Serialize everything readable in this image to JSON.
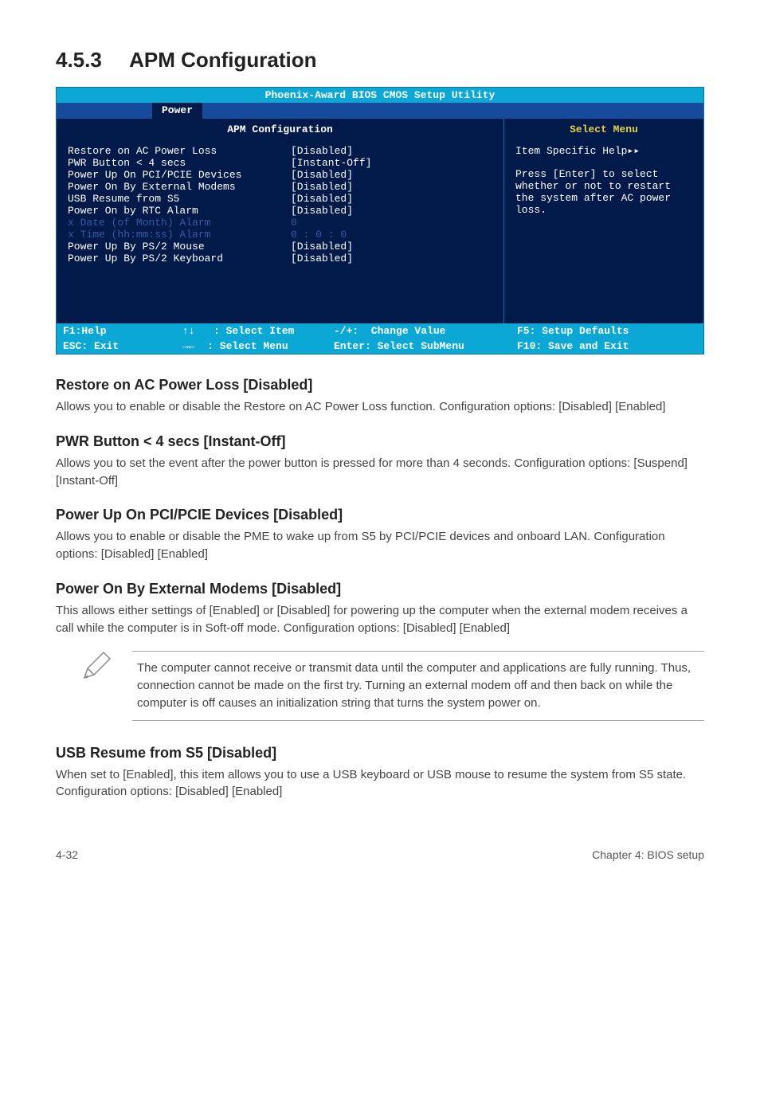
{
  "section": {
    "number": "4.5.3",
    "title": "APM Configuration"
  },
  "bios": {
    "titlebar": "Phoenix-Award BIOS CMOS Setup Utility",
    "active_tab": "Power",
    "pane_header_left": "APM Configuration",
    "pane_header_right": "Select Menu",
    "settings": [
      {
        "label": "Restore on AC Power Loss",
        "value": "[Disabled]",
        "dim": false
      },
      {
        "label": "PWR Button < 4 secs",
        "value": "[Instant-Off]",
        "dim": false
      },
      {
        "label": "Power Up On PCI/PCIE Devices",
        "value": "[Disabled]",
        "dim": false
      },
      {
        "label": "Power On By External Modems",
        "value": "[Disabled]",
        "dim": false
      },
      {
        "label": "USB Resume from S5",
        "value": "[Disabled]",
        "dim": false
      },
      {
        "label": "Power On by RTC Alarm",
        "value": "[Disabled]",
        "dim": false
      },
      {
        "label": "x  Date (of Month) Alarm",
        "value": " 0",
        "dim": true
      },
      {
        "label": "x  Time (hh:mm:ss) Alarm",
        "value": " 0 : 0 : 0",
        "dim": true
      },
      {
        "label": "Power Up By PS/2 Mouse",
        "value": "[Disabled]",
        "dim": false
      },
      {
        "label": "Power Up By PS/2 Keyboard",
        "value": "[Disabled]",
        "dim": false
      }
    ],
    "help": {
      "title": "Item Specific Help▸▸",
      "body": "Press [Enter] to select whether or not to restart the system after AC power loss."
    },
    "footer": {
      "l1a": "F1:Help",
      "l1b": "↑↓   : Select Item",
      "l1c": "-/+:  Change Value",
      "l1d": "F5: Setup Defaults",
      "l2a": "ESC: Exit",
      "l2b": "→←  : Select Menu",
      "l2c": "Enter: Select SubMenu",
      "l2d": "F10: Save and Exit"
    }
  },
  "subs": {
    "restore": {
      "h": "Restore on AC Power Loss [Disabled]",
      "p": "Allows you to enable or disable the Restore on AC Power Loss function. Configuration options: [Disabled] [Enabled]"
    },
    "pwr": {
      "h": "PWR Button < 4 secs [Instant-Off]",
      "p": "Allows you to set the event after the power button is pressed for more than 4 seconds. Configuration options: [Suspend] [Instant-Off]"
    },
    "pci": {
      "h": "Power Up On PCI/PCIE Devices [Disabled]",
      "p": "Allows you to enable or disable the PME to wake up from S5 by PCI/PCIE devices and onboard LAN. Configuration options: [Disabled] [Enabled]"
    },
    "modem": {
      "h": "Power On By External Modems [Disabled]",
      "p": "This allows either settings of [Enabled] or [Disabled] for powering up the computer when the external modem receives a call while the computer is in Soft-off mode. Configuration options: [Disabled] [Enabled]"
    },
    "note": "The computer cannot receive or transmit data until the computer and applications are fully running. Thus, connection cannot be made on the first try. Turning an external modem off and then back on while the computer is off causes an initialization string that turns the system power on.",
    "usb": {
      "h": "USB Resume from S5 [Disabled]",
      "p": "When set to [Enabled], this item allows you to use a USB keyboard or USB mouse to resume the system from S5 state. Configuration options: [Disabled] [Enabled]"
    }
  },
  "pagefoot": {
    "left": "4-32",
    "right": "Chapter 4: BIOS setup"
  }
}
